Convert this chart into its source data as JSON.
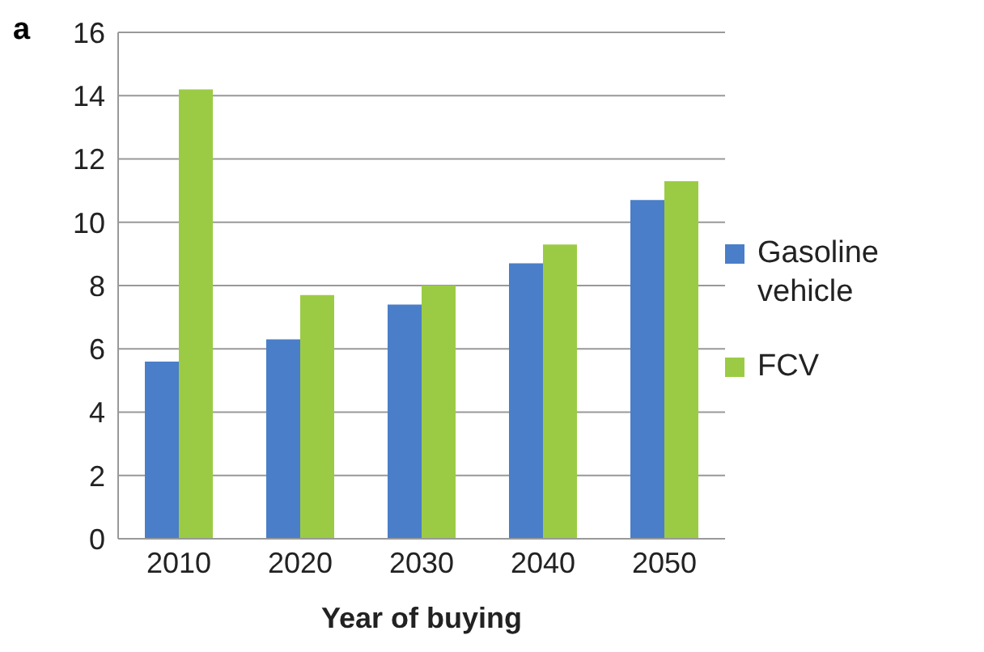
{
  "chart_data": {
    "type": "bar",
    "title": "a",
    "xlabel": "Year of buying",
    "categories": [
      "2010",
      "2020",
      "2030",
      "2040",
      "2050"
    ],
    "series": [
      {
        "name": "Gasoline vehicle",
        "color": "#4a7ec8",
        "values": [
          5.6,
          6.3,
          7.4,
          8.7,
          10.7
        ]
      },
      {
        "name": "FCV",
        "color": "#9bcb45",
        "values": [
          14.2,
          7.7,
          8.0,
          9.3,
          11.3
        ]
      }
    ],
    "ylim": [
      0,
      16
    ],
    "yticks": [
      0,
      2,
      4,
      6,
      8,
      10,
      12,
      14,
      16
    ],
    "grid": "y",
    "legend": "right"
  }
}
